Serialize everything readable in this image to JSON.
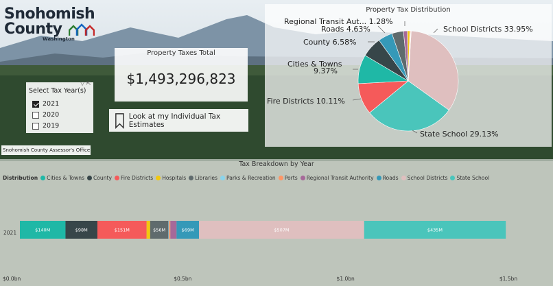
{
  "logo": {
    "line1": "Snohomish",
    "line2": "County",
    "line3": "Washington"
  },
  "total": {
    "title": "Property Taxes Total",
    "value": "$1,493,296,823"
  },
  "slicer": {
    "title": "Select Tax Year(s)",
    "options": [
      {
        "label": "2021",
        "checked": true
      },
      {
        "label": "2020",
        "checked": false
      },
      {
        "label": "2019",
        "checked": false
      }
    ]
  },
  "estimates_button": {
    "label": "Look at my Individual Tax Estimates"
  },
  "assessor_label": "Snohomish County Assessor's Office",
  "pie": {
    "title": "Property Tax Distribution",
    "labels": {
      "regional": "Regional Transit Aut... 1.28%",
      "roads": "Roads 4.63%",
      "county": "County 6.58%",
      "cities_line1": "Cities & Towns",
      "cities_line2": "9.37%",
      "fire": "Fire Districts 10.11%",
      "school": "School Districts 33.95%",
      "state": "State School 29.13%"
    }
  },
  "bar": {
    "title": "Tax Breakdown by Year",
    "legend_title": "Distribution",
    "legend": [
      {
        "name": "Cities & Towns",
        "color": "#1fb8a6"
      },
      {
        "name": "County",
        "color": "#374649"
      },
      {
        "name": "Fire Districts",
        "color": "#f55a5a"
      },
      {
        "name": "Hospitals",
        "color": "#f2c80f"
      },
      {
        "name": "Libraries",
        "color": "#5f6b6d"
      },
      {
        "name": "Parks & Recreation",
        "color": "#8ad4eb"
      },
      {
        "name": "Ports",
        "color": "#fe9666"
      },
      {
        "name": "Regional Transit Authority",
        "color": "#a66999"
      },
      {
        "name": "Roads",
        "color": "#3599b8"
      },
      {
        "name": "School Districts",
        "color": "#dfbfbf"
      },
      {
        "name": "State School",
        "color": "#4ac5bb"
      }
    ]
  },
  "chart_data": [
    {
      "type": "pie",
      "title": "Property Tax Distribution",
      "categories": [
        "School Districts",
        "State School",
        "Fire Districts",
        "Cities & Towns",
        "County",
        "Roads",
        "Libraries",
        "Regional Transit Authority",
        "Hospitals",
        "Ports",
        "Parks & Recreation"
      ],
      "values": [
        33.95,
        29.13,
        10.11,
        9.37,
        6.58,
        4.63,
        3.75,
        1.28,
        0.75,
        0.3,
        0.15
      ],
      "colors": [
        "#dfbfbf",
        "#4ac5bb",
        "#f55a5a",
        "#1fb8a6",
        "#374649",
        "#3599b8",
        "#5f6b6d",
        "#a66999",
        "#f2c80f",
        "#fe9666",
        "#8ad4eb"
      ]
    },
    {
      "type": "bar",
      "orientation": "horizontal-stacked",
      "title": "Tax Breakdown by Year",
      "categories": [
        "2021"
      ],
      "x_ticks": [
        "$0.0bn",
        "$0.5bn",
        "$1.0bn",
        "$1.5bn"
      ],
      "xlim": [
        0,
        1.5
      ],
      "series": [
        {
          "name": "Cities & Towns",
          "value": 0.14,
          "label": "$140M",
          "color": "#1fb8a6"
        },
        {
          "name": "County",
          "value": 0.098,
          "label": "$98M",
          "color": "#374649"
        },
        {
          "name": "Fire Districts",
          "value": 0.151,
          "label": "$151M",
          "color": "#f55a5a"
        },
        {
          "name": "Hospitals",
          "value": 0.011,
          "label": "",
          "color": "#f2c80f"
        },
        {
          "name": "Libraries",
          "value": 0.056,
          "label": "$56M",
          "color": "#5f6b6d"
        },
        {
          "name": "Parks & Recreation",
          "value": 0.002,
          "label": "",
          "color": "#8ad4eb"
        },
        {
          "name": "Ports",
          "value": 0.004,
          "label": "",
          "color": "#fe9666"
        },
        {
          "name": "Regional Transit Authority",
          "value": 0.019,
          "label": "",
          "color": "#a66999"
        },
        {
          "name": "Roads",
          "value": 0.069,
          "label": "$69M",
          "color": "#3599b8"
        },
        {
          "name": "School Districts",
          "value": 0.507,
          "label": "$507M",
          "color": "#dfbfbf"
        },
        {
          "name": "State School",
          "value": 0.435,
          "label": "$435M",
          "color": "#4ac5bb"
        }
      ]
    }
  ]
}
